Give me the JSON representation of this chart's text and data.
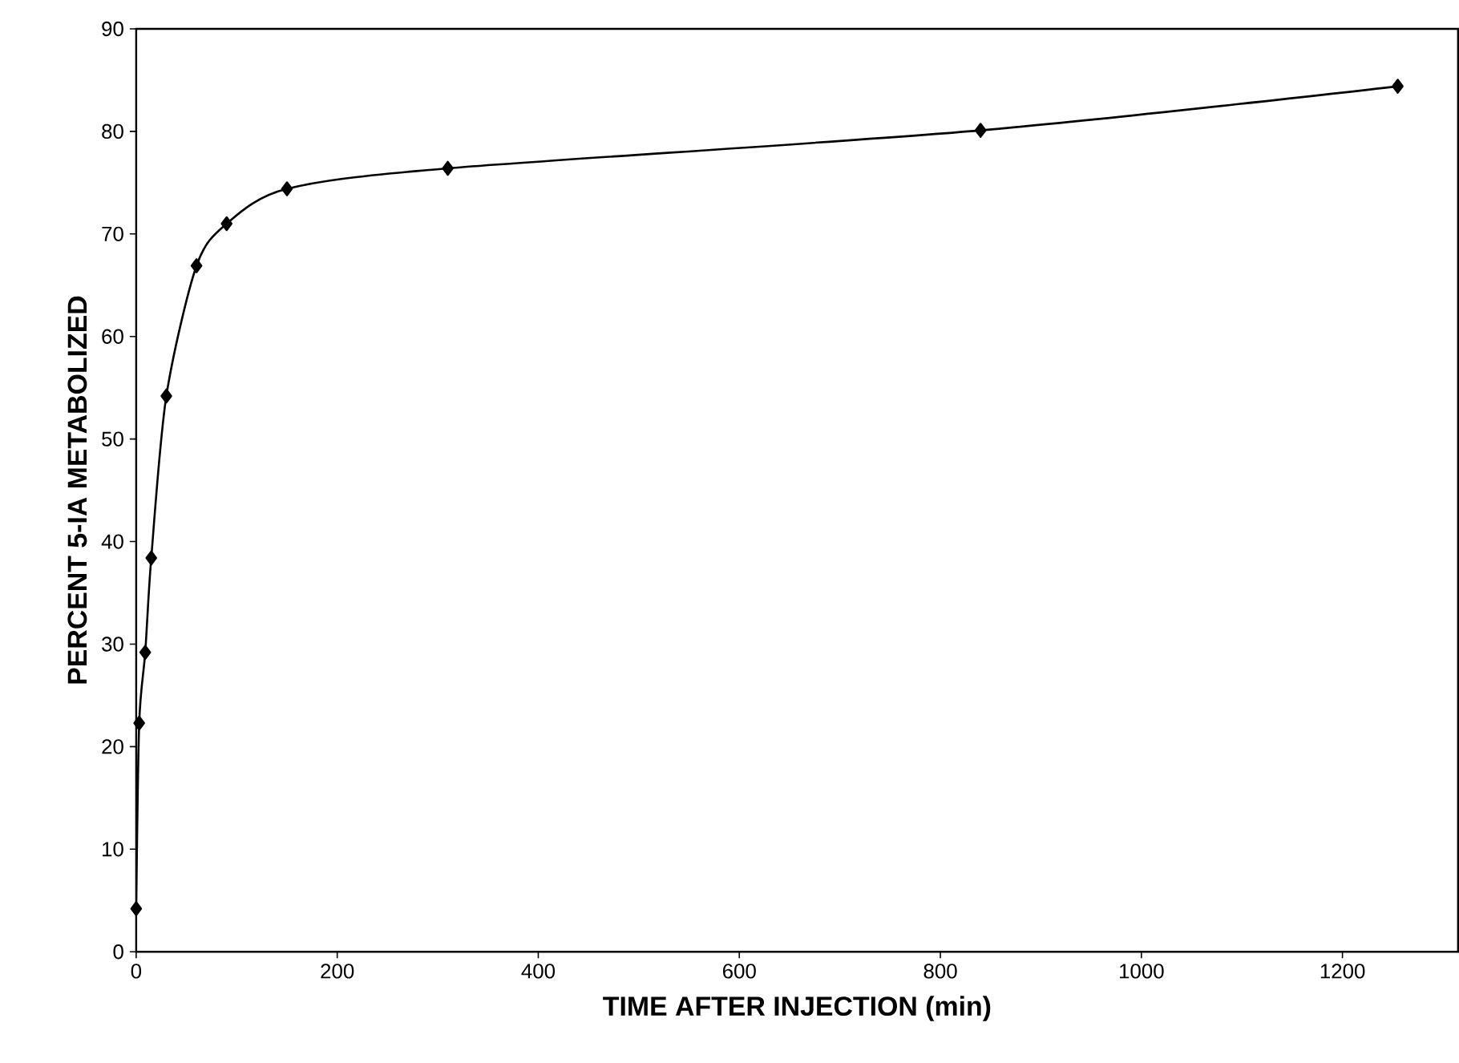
{
  "chart_data": {
    "type": "line",
    "xlabel": "TIME AFTER INJECTION (min)",
    "ylabel": "PERCENT 5-IA METABOLIZED",
    "x": [
      0,
      3,
      9,
      15,
      30,
      60,
      90,
      150,
      310,
      840,
      1255
    ],
    "series": [
      {
        "color": "#000000",
        "values": [
          4.2,
          22.3,
          29.2,
          38.4,
          54.2,
          66.9,
          71.0,
          74.4,
          76.4,
          80.1,
          84.4
        ]
      }
    ],
    "xlim": [
      0,
      1315
    ],
    "ylim": [
      0,
      90
    ],
    "xticks": [
      0,
      200,
      400,
      600,
      800,
      1000,
      1200
    ],
    "yticks": [
      0,
      10,
      20,
      30,
      40,
      50,
      60,
      70,
      80,
      90
    ],
    "marker": "diamond",
    "line_style": "solid"
  }
}
